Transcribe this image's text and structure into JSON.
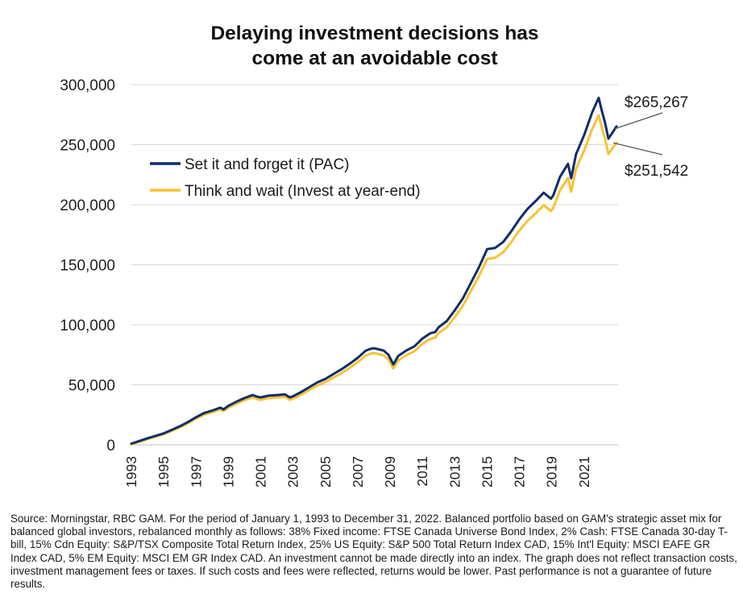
{
  "chart_data": {
    "type": "line",
    "title": "Delaying investment decisions has come at an avoidable cost",
    "title_lines": [
      "Delaying investment decisions has",
      "come at an avoidable cost"
    ],
    "xlabel": "",
    "ylabel": "",
    "ylim": [
      0,
      300000
    ],
    "xlim": [
      1993,
      2023.1
    ],
    "y_ticks": [
      {
        "value": 0,
        "label": "0"
      },
      {
        "value": 50000,
        "label": "50,000"
      },
      {
        "value": 100000,
        "label": "100,000"
      },
      {
        "value": 150000,
        "label": "150,000"
      },
      {
        "value": 200000,
        "label": "200,000"
      },
      {
        "value": 250000,
        "label": "250,000"
      },
      {
        "value": 300000,
        "label": "300,000"
      }
    ],
    "x_ticks": [
      "1993",
      "1995",
      "1997",
      "1999",
      "2001",
      "2003",
      "2005",
      "2007",
      "2009",
      "2011",
      "2013",
      "2015",
      "2017",
      "2019",
      "2021"
    ],
    "grid": "horizontal",
    "legend_position": "upper-left",
    "series": [
      {
        "name": "Set it and forget it (PAC)",
        "color": "#0f2d6b",
        "x": [
          1993.0,
          1993.5,
          1994.0,
          1994.5,
          1995.0,
          1995.5,
          1996.0,
          1996.5,
          1997.0,
          1997.5,
          1998.0,
          1998.5,
          1998.7,
          1999.0,
          1999.5,
          2000.0,
          2000.5,
          2000.8,
          2001.0,
          2001.5,
          2002.0,
          2002.5,
          2002.8,
          2003.0,
          2003.5,
          2004.0,
          2004.5,
          2005.0,
          2005.5,
          2006.0,
          2006.5,
          2007.0,
          2007.5,
          2007.8,
          2008.0,
          2008.3,
          2008.6,
          2008.9,
          2009.2,
          2009.5,
          2010.0,
          2010.5,
          2011.0,
          2011.5,
          2011.8,
          2012.0,
          2012.5,
          2013.0,
          2013.5,
          2014.0,
          2014.5,
          2014.9,
          2015.0,
          2015.5,
          2016.0,
          2016.5,
          2017.0,
          2017.5,
          2018.0,
          2018.5,
          2018.95,
          2019.1,
          2019.5,
          2020.0,
          2020.2,
          2020.5,
          2021.0,
          2021.5,
          2021.9,
          2022.1,
          2022.3,
          2022.5,
          2022.75,
          2023.0
        ],
        "values": [
          1000,
          3200,
          5500,
          7500,
          9500,
          12500,
          15500,
          19000,
          23000,
          26500,
          28500,
          31000,
          29500,
          32500,
          36000,
          39000,
          41500,
          40000,
          39500,
          41000,
          41500,
          42000,
          39500,
          40500,
          44000,
          48000,
          52000,
          55000,
          59000,
          63000,
          67500,
          72500,
          78500,
          80000,
          80500,
          79500,
          78500,
          75000,
          67000,
          74000,
          78500,
          82000,
          88500,
          93000,
          94000,
          98000,
          103000,
          112000,
          122000,
          135000,
          148000,
          160000,
          163000,
          164000,
          169000,
          178000,
          188000,
          196500,
          203000,
          210000,
          205000,
          208000,
          223000,
          234000,
          222000,
          242000,
          258000,
          277000,
          289000,
          278000,
          268000,
          255000,
          260000,
          265267
        ]
      },
      {
        "name": "Think and wait (Invest at year-end)",
        "color": "#f8c235",
        "x": [
          1993.0,
          1993.5,
          1994.0,
          1994.5,
          1995.0,
          1995.5,
          1996.0,
          1996.5,
          1997.0,
          1997.5,
          1998.0,
          1998.5,
          1998.7,
          1999.0,
          1999.5,
          2000.0,
          2000.5,
          2000.8,
          2001.0,
          2001.5,
          2002.0,
          2002.5,
          2002.8,
          2003.0,
          2003.5,
          2004.0,
          2004.5,
          2005.0,
          2005.5,
          2006.0,
          2006.5,
          2007.0,
          2007.5,
          2007.8,
          2008.0,
          2008.3,
          2008.6,
          2008.9,
          2009.2,
          2009.5,
          2010.0,
          2010.5,
          2011.0,
          2011.5,
          2011.8,
          2012.0,
          2012.5,
          2013.0,
          2013.5,
          2014.0,
          2014.5,
          2014.9,
          2015.0,
          2015.5,
          2016.0,
          2016.5,
          2017.0,
          2017.5,
          2018.0,
          2018.5,
          2018.95,
          2019.1,
          2019.5,
          2020.0,
          2020.2,
          2020.5,
          2021.0,
          2021.5,
          2021.9,
          2022.1,
          2022.3,
          2022.5,
          2022.75,
          2023.0
        ],
        "values": [
          500,
          2500,
          4800,
          6800,
          8800,
          11700,
          14600,
          18000,
          21800,
          25200,
          27200,
          29600,
          28200,
          31000,
          34300,
          37200,
          39500,
          38000,
          37500,
          39000,
          39500,
          40000,
          37500,
          38500,
          41800,
          45600,
          49400,
          52300,
          56000,
          59800,
          64100,
          68900,
          74500,
          76000,
          76500,
          75500,
          74600,
          71200,
          63600,
          70300,
          74600,
          77900,
          84100,
          88300,
          89300,
          93100,
          97800,
          106400,
          115900,
          128200,
          140600,
          152000,
          154800,
          155800,
          160500,
          169000,
          178600,
          186600,
          192800,
          199500,
          194700,
          197600,
          211800,
          222300,
          210900,
          229900,
          245100,
          263100,
          274500,
          264100,
          254600,
          242200,
          247000,
          251542
        ]
      }
    ],
    "annotations": [
      {
        "text": "$265,267",
        "series": "Set it and forget it (PAC)"
      },
      {
        "text": "$251,542",
        "series": "Think and wait (Invest at year-end)"
      }
    ]
  },
  "source_note": "Source: Morningstar, RBC GAM. For the period of January 1, 1993 to December 31, 2022. Balanced portfolio based on GAM's strategic asset mix for balanced global investors, rebalanced monthly as follows: 38% Fixed income: FTSE Canada Universe Bond Index, 2% Cash: FTSE Canada 30-day T-bill, 15% Cdn Equity: S&P/TSX Composite Total Return Index, 25% US Equity: S&P 500 Total Return Index CAD, 15% Int'l Equity: MSCI EAFE GR Index CAD, 5% EM Equity: MSCI EM GR Index CAD. An investment cannot be made directly into an index. The graph does not reflect transaction costs, investment management fees or taxes. If such costs and fees were reflected, returns would be lower. Past performance is not a guarantee of future results."
}
